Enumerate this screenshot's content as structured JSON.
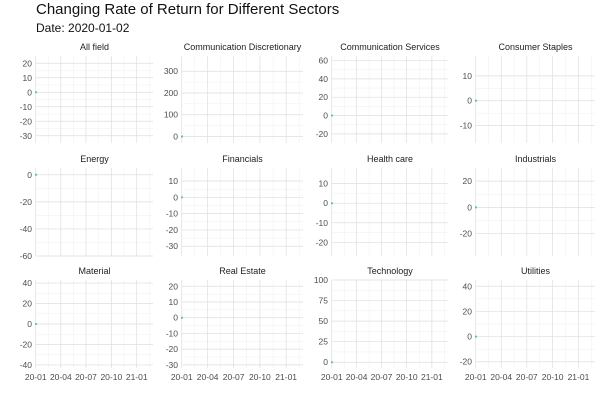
{
  "chart_data": {
    "type": "line",
    "title": "Changing Rate of Return for Different Sectors",
    "subtitle": "Date: 2020-01-02",
    "x_tick_labels": [
      "20-01",
      "20-04",
      "20-07",
      "20-10",
      "21-01"
    ],
    "x_ticks": [
      "2020-01",
      "2020-04",
      "2020-07",
      "2020-10",
      "2021-01"
    ],
    "x_range": [
      "2020-01-02",
      "2021-03-01"
    ],
    "grid": true,
    "legend": "none",
    "line_color": "#5ec2a0",
    "panels": [
      {
        "name": "All field",
        "ylim": [
          -35,
          25
        ],
        "yticks": [
          20,
          10,
          0,
          -10,
          -20,
          -30
        ],
        "points": [
          {
            "x": "2020-01-02",
            "y": 0
          }
        ]
      },
      {
        "name": "Communication Discretionary",
        "ylim": [
          -30,
          370
        ],
        "yticks": [
          300,
          200,
          100,
          0
        ],
        "points": [
          {
            "x": "2020-01-02",
            "y": 0
          }
        ]
      },
      {
        "name": "Communication Services",
        "ylim": [
          -30,
          65
        ],
        "yticks": [
          60,
          40,
          20,
          0,
          -20
        ],
        "points": [
          {
            "x": "2020-01-02",
            "y": 0
          }
        ]
      },
      {
        "name": "Consumer Staples",
        "ylim": [
          -17,
          18
        ],
        "yticks": [
          10,
          0,
          -10
        ],
        "points": [
          {
            "x": "2020-01-02",
            "y": 0
          }
        ]
      },
      {
        "name": "Energy",
        "ylim": [
          -60,
          5
        ],
        "yticks": [
          0,
          -20,
          -40,
          -60
        ],
        "points": [
          {
            "x": "2020-01-02",
            "y": 0
          }
        ]
      },
      {
        "name": "Financials",
        "ylim": [
          -36,
          18
        ],
        "yticks": [
          10,
          0,
          -10,
          -20,
          -30
        ],
        "points": [
          {
            "x": "2020-01-02",
            "y": 0
          }
        ]
      },
      {
        "name": "Health care",
        "ylim": [
          -27,
          18
        ],
        "yticks": [
          10,
          0,
          -10,
          -20
        ],
        "points": [
          {
            "x": "2020-01-02",
            "y": 0
          }
        ]
      },
      {
        "name": "Industrials",
        "ylim": [
          -37,
          30
        ],
        "yticks": [
          20,
          0,
          -20
        ],
        "points": [
          {
            "x": "2020-01-02",
            "y": 0
          }
        ]
      },
      {
        "name": "Material",
        "ylim": [
          -43,
          43
        ],
        "yticks": [
          40,
          20,
          0,
          -20,
          -40
        ],
        "points": [
          {
            "x": "2020-01-02",
            "y": 0
          }
        ]
      },
      {
        "name": "Real Estate",
        "ylim": [
          -32,
          24
        ],
        "yticks": [
          20,
          10,
          0,
          -10,
          -20,
          -30
        ],
        "points": [
          {
            "x": "2020-01-02",
            "y": 0
          }
        ]
      },
      {
        "name": "Technology",
        "ylim": [
          -7,
          100
        ],
        "yticks": [
          100,
          75,
          50,
          25,
          0
        ],
        "points": [
          {
            "x": "2020-01-02",
            "y": 0
          }
        ]
      },
      {
        "name": "Utilities",
        "ylim": [
          -25,
          45
        ],
        "yticks": [
          40,
          20,
          0,
          -20
        ],
        "points": [
          {
            "x": "2020-01-02",
            "y": 0
          }
        ]
      }
    ]
  }
}
